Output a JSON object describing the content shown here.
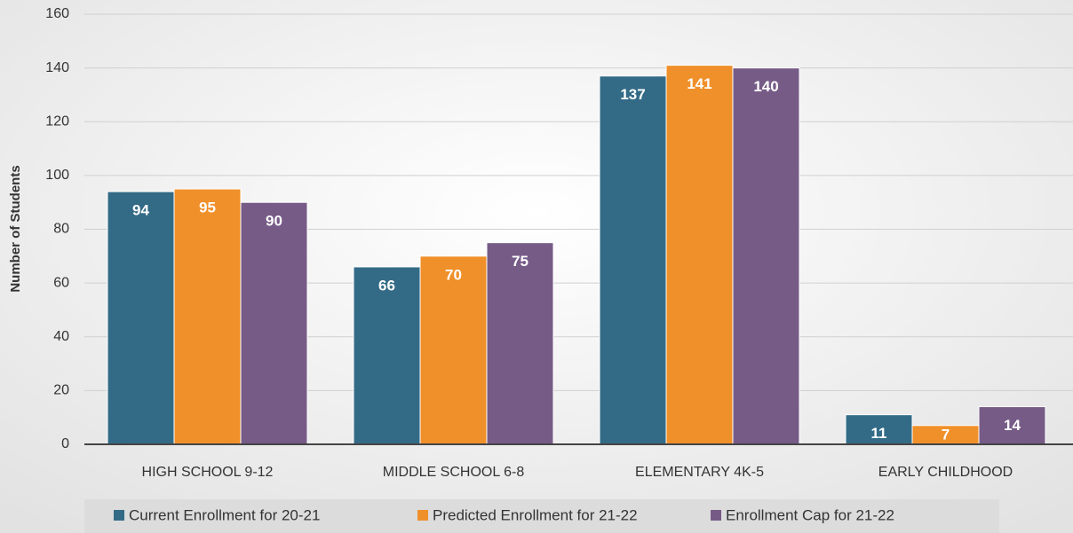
{
  "chart_data": {
    "type": "bar",
    "y_label": "Number of Students",
    "categories": [
      "HIGH SCHOOL 9-12",
      "MIDDLE SCHOOL 6-8",
      "ELEMENTARY 4K-5",
      "EARLY CHILDHOOD"
    ],
    "series": [
      {
        "name": "Current Enrollment for 20-21",
        "color": "#336b87",
        "values": [
          94,
          66,
          137,
          11
        ]
      },
      {
        "name": "Predicted Enrollment for 21-22",
        "color": "#f0902a",
        "values": [
          95,
          70,
          141,
          7
        ]
      },
      {
        "name": "Enrollment Cap for 21-22",
        "color": "#765b87",
        "values": [
          90,
          75,
          140,
          14
        ]
      }
    ],
    "ylim": [
      0,
      160
    ],
    "yticks": [
      0,
      20,
      40,
      60,
      80,
      100,
      120,
      140,
      160
    ],
    "grid": true,
    "legend": "bottom"
  }
}
